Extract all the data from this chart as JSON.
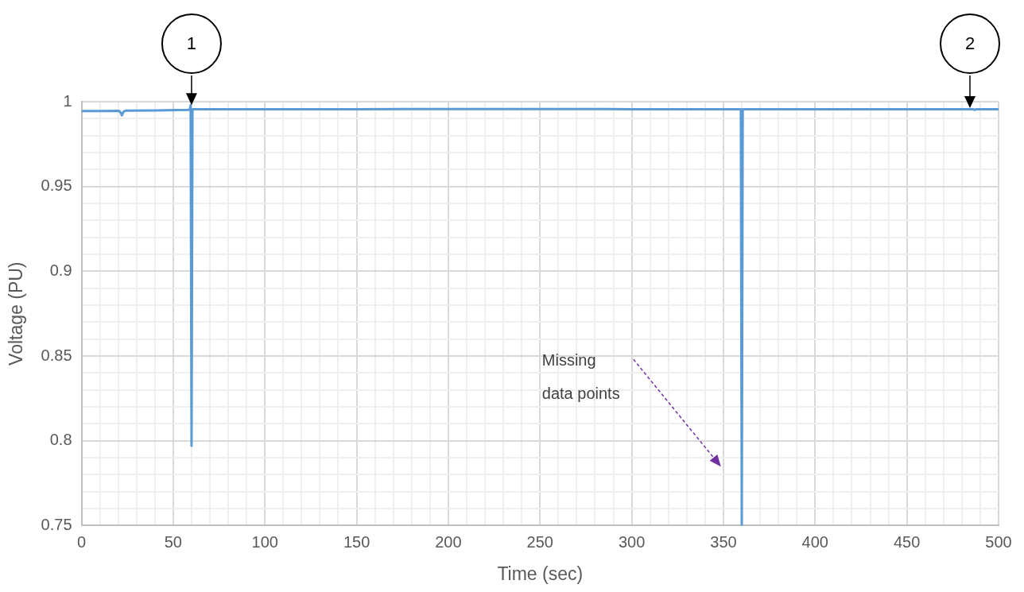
{
  "chart_data": {
    "type": "line",
    "xlabel": "Time (sec)",
    "ylabel": "Voltage (PU)",
    "x": [
      0,
      10,
      20,
      21,
      22,
      23,
      24,
      40,
      58,
      59,
      59.5,
      60,
      60.5,
      61,
      62,
      100,
      150,
      200,
      250,
      300,
      350,
      358,
      359,
      359.5,
      360,
      360.5,
      361,
      362,
      400,
      450,
      485,
      486,
      487,
      488,
      489,
      500
    ],
    "series": [
      {
        "color": "#5b9bd5",
        "values": [
          0.9945,
          0.9945,
          0.9946,
          0.9942,
          0.992,
          0.9942,
          0.9947,
          0.9948,
          0.9952,
          0.9953,
          0.998,
          0.797,
          0.9955,
          0.9955,
          0.9955,
          0.9956,
          0.9956,
          0.9957,
          0.9957,
          0.9956,
          0.9956,
          0.9956,
          0.9956,
          0.9956,
          0.75,
          0.9956,
          0.9956,
          0.9956,
          0.9956,
          0.9956,
          0.9956,
          0.9956,
          0.9952,
          0.9956,
          0.9955,
          0.9955
        ]
      }
    ],
    "xlim": [
      0,
      500
    ],
    "ylim": [
      0.75,
      1
    ],
    "xticks": [
      0,
      {
        "value": 10,
        "label": null
      },
      {
        "value": 20,
        "label": null
      },
      {
        "value": 30,
        "label": null
      },
      {
        "value": 40,
        "label": null
      },
      50,
      {
        "value": 60,
        "label": null
      },
      {
        "value": 70,
        "label": null
      },
      {
        "value": 80,
        "label": null
      },
      {
        "value": 90,
        "label": null
      },
      100,
      {
        "value": 110,
        "label": null
      },
      {
        "value": 120,
        "label": null
      },
      {
        "value": 130,
        "label": null
      },
      {
        "value": 140,
        "label": null
      },
      150,
      {
        "value": 160,
        "label": null
      },
      {
        "value": 170,
        "label": null
      },
      {
        "value": 180,
        "label": null
      },
      {
        "value": 190,
        "label": null
      },
      200,
      {
        "value": 210,
        "label": null
      },
      {
        "value": 220,
        "label": null
      },
      {
        "value": 230,
        "label": null
      },
      {
        "value": 240,
        "label": null
      },
      250,
      {
        "value": 260,
        "label": null
      },
      {
        "value": 270,
        "label": null
      },
      {
        "value": 280,
        "label": null
      },
      {
        "value": 290,
        "label": null
      },
      300,
      {
        "value": 310,
        "label": null
      },
      {
        "value": 320,
        "label": null
      },
      {
        "value": 330,
        "label": null
      },
      {
        "value": 340,
        "label": null
      },
      350,
      {
        "value": 360,
        "label": null
      },
      {
        "value": 370,
        "label": null
      },
      {
        "value": 380,
        "label": null
      },
      {
        "value": 390,
        "label": null
      },
      400,
      {
        "value": 410,
        "label": null
      },
      {
        "value": 420,
        "label": null
      },
      {
        "value": 430,
        "label": null
      },
      {
        "value": 440,
        "label": null
      },
      450,
      {
        "value": 460,
        "label": null
      },
      {
        "value": 470,
        "label": null
      },
      {
        "value": 480,
        "label": null
      },
      {
        "value": 490,
        "label": null
      },
      500
    ],
    "yticks": [
      0.75,
      {
        "value": 0.76,
        "label": null
      },
      {
        "value": 0.77,
        "label": null
      },
      {
        "value": 0.78,
        "label": null
      },
      {
        "value": 0.79,
        "label": null
      },
      0.8,
      {
        "value": 0.81,
        "label": null
      },
      {
        "value": 0.82,
        "label": null
      },
      {
        "value": 0.83,
        "label": null
      },
      {
        "value": 0.84,
        "label": null
      },
      0.85,
      {
        "value": 0.86,
        "label": null
      },
      {
        "value": 0.87,
        "label": null
      },
      {
        "value": 0.88,
        "label": null
      },
      {
        "value": 0.89,
        "label": null
      },
      0.9,
      {
        "value": 0.91,
        "label": null
      },
      {
        "value": 0.92,
        "label": null
      },
      {
        "value": 0.93,
        "label": null
      },
      {
        "value": 0.94,
        "label": null
      },
      0.95,
      {
        "value": 0.96,
        "label": null
      },
      {
        "value": 0.97,
        "label": null
      },
      {
        "value": 0.98,
        "label": null
      },
      {
        "value": 0.99,
        "label": null
      },
      1
    ],
    "grid": true,
    "legend": false,
    "marker": "none",
    "line_style": "solid",
    "annotations": [
      {
        "text": "1",
        "x": 60,
        "y": 0.998
      },
      "2",
      "Missing data points"
    ]
  }
}
